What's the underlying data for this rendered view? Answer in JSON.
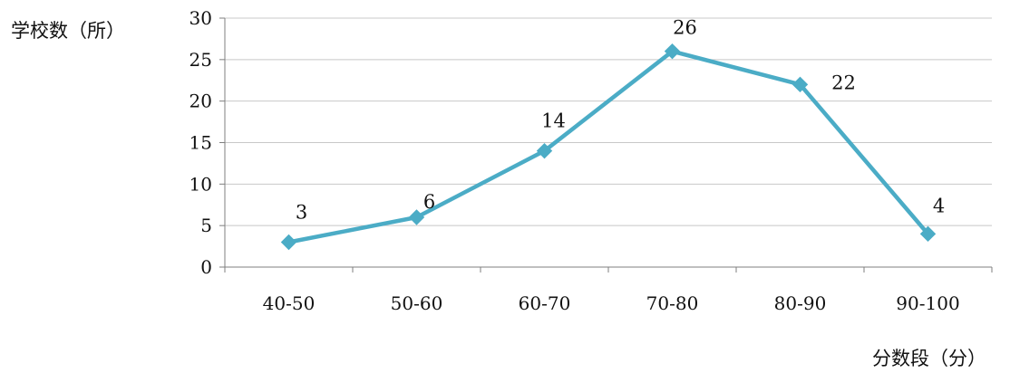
{
  "chart_data": {
    "type": "line",
    "ylabel": "学校数（所）",
    "xlabel": "分数段（分）",
    "categories": [
      "40-50",
      "50-60",
      "60-70",
      "70-80",
      "80-90",
      "90-100"
    ],
    "series": [
      {
        "values": [
          3,
          6,
          14,
          26,
          22,
          4
        ]
      }
    ],
    "data_labels": [
      "3",
      "6",
      "14",
      "26",
      "22",
      "4"
    ],
    "ylim": [
      0,
      30
    ],
    "yticks": [
      0,
      5,
      10,
      15,
      20,
      25,
      30
    ],
    "grid": true,
    "legend": "none",
    "colors": {
      "line": "#4BACC6",
      "grid": "#C8C8C8",
      "axis": "#7F7F7F",
      "text": "#111111"
    }
  }
}
